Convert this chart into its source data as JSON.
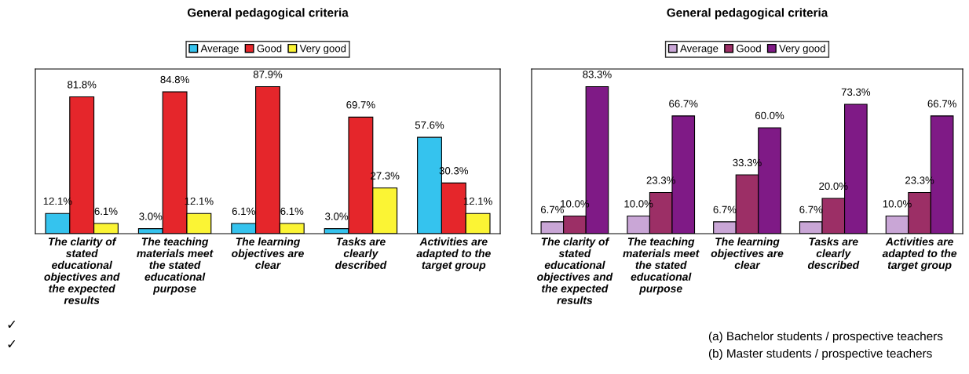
{
  "chart_data": [
    {
      "type": "bar",
      "title": "General pedagogical criteria",
      "categories": [
        "The clarity of stated educational objectives and the expected results",
        "The teaching materials meet the stated educational purpose",
        "The learning objectives are clear",
        "Tasks are clearly described",
        "Activities are adapted to the target group"
      ],
      "series": [
        {
          "name": "Average",
          "color": "#35c3ee",
          "values": [
            12.1,
            3.0,
            6.1,
            3.0,
            57.6
          ],
          "value_labels": [
            "12.1%",
            "3.0%",
            "6.1%",
            "3.0%",
            "57.6%"
          ]
        },
        {
          "name": "Good",
          "color": "#e5262b",
          "values": [
            81.8,
            84.8,
            87.9,
            69.7,
            30.3
          ],
          "value_labels": [
            "81.8%",
            "84.8%",
            "87.9%",
            "69.7%",
            "30.3%"
          ]
        },
        {
          "name": "Very good",
          "color": "#fbf434",
          "values": [
            6.1,
            12.1,
            6.1,
            27.3,
            12.1
          ],
          "value_labels": [
            "6.1%",
            "12.1%",
            "6.1%",
            "27.3%",
            "12.1%"
          ]
        }
      ],
      "legend": "top",
      "grid": false,
      "tick_labels": "x",
      "annotations": [
        "✓",
        "✓"
      ]
    },
    {
      "type": "bar",
      "title": "General pedagogical criteria",
      "categories": [
        "The clarity of stated educational objectives and the expected results",
        "The teaching materials meet the stated educational purpose",
        "The learning objectives are clear",
        "Tasks are clearly described",
        "Activities are adapted to the target group"
      ],
      "series": [
        {
          "name": "Average",
          "color": "#c9a6d6",
          "values": [
            6.7,
            10.0,
            6.7,
            6.7,
            10.0
          ],
          "value_labels": [
            "6.7%",
            "10.0%",
            "6.7%",
            "6.7%",
            "10.0%"
          ]
        },
        {
          "name": "Good",
          "color": "#9c2f66",
          "values": [
            10.0,
            23.3,
            33.3,
            20.0,
            23.3
          ],
          "value_labels": [
            "10.0%",
            "23.3%",
            "33.3%",
            "20.0%",
            "23.3%"
          ]
        },
        {
          "name": "Very good",
          "color": "#7f1a86",
          "values": [
            83.3,
            66.7,
            60.0,
            73.3,
            66.7
          ],
          "value_labels": [
            "83.3%",
            "66.7%",
            "60.0%",
            "73.3%",
            "66.7%"
          ]
        }
      ],
      "legend": "top",
      "grid": false,
      "tick_labels": "x",
      "annotations": [
        "(a) Bachelor students / prospective teachers",
        "(b) Master students / prospective teachers"
      ]
    }
  ]
}
